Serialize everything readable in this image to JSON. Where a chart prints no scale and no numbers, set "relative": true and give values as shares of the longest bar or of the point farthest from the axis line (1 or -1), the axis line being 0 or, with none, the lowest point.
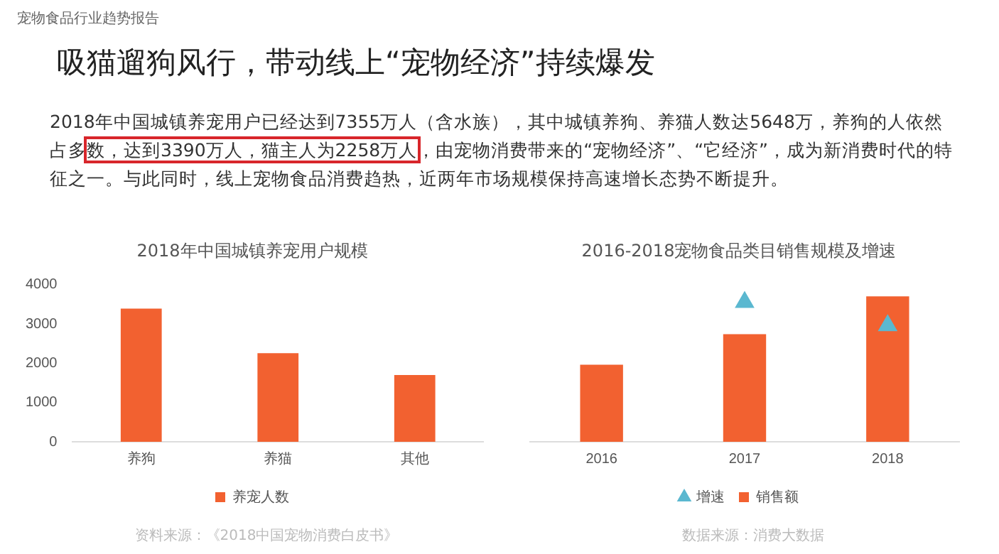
{
  "chart_data": [
    {
      "type": "other",
      "title": "吸猫遛狗风行，带动线上“宠物经济”持续爆发",
      "annotations": [
        "宠物食品行业趋势报告",
        "2018年中国城镇养宠用户已经达到7355万人（含水族），其中城镇养狗、养猫人数达5648万，养狗的人依然占多",
        "数，达到3390万人，猫主人为2258万人",
        "，由宠物消费带来的“宠物经济”、“它经济”，成为新消费时代的特征之一。与此同时，线上宠物食品消费趋热，近两年市场规模保持高速增长态势不断提升。"
      ]
    },
    {
      "type": "bar",
      "title": "2018年中国城镇养宠用户规模",
      "categories": [
        "养狗",
        "养猫",
        "其他"
      ],
      "series": [
        {
          "name": "养宠人数",
          "color": "#f26130",
          "values": [
            3390,
            2258,
            1700
          ]
        }
      ],
      "ylim": [
        0,
        4000
      ],
      "yticks": [
        0,
        1000,
        2000,
        3000,
        4000
      ],
      "grid": false,
      "legend": "bottom",
      "annotations": [
        "资料来源：《2018中国宠物消费白皮书》"
      ]
    },
    {
      "type": "bar",
      "title": "2016-2018宠物食品类目销售规模及增速",
      "categories": [
        "2016",
        "2017",
        "2018"
      ],
      "relative": true,
      "series": [
        {
          "name": "销售额",
          "color": "#f26130",
          "values": [
            0.53,
            0.74,
            1
          ]
        },
        {
          "name": "增速",
          "type": "scatter",
          "color": "#5bb8d0",
          "marker": "triangle",
          "values": [
            null,
            0.96,
            0.8
          ]
        }
      ],
      "grid": false,
      "legend": "bottom",
      "annotations": [
        "数据来源：消费大数据"
      ]
    }
  ]
}
